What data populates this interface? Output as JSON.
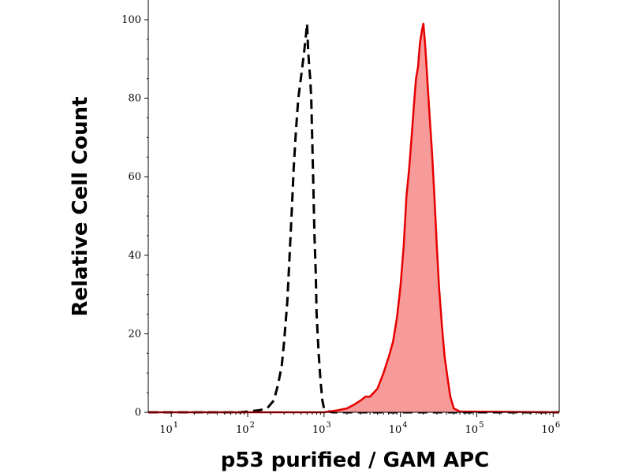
{
  "chart_data": {
    "type": "area",
    "title": "",
    "xlabel": "p53 purified / GAM APC",
    "ylabel": "Relative Cell Count",
    "x_scale": "log",
    "xlim": [
      5,
      1200000
    ],
    "ylim": [
      0,
      100
    ],
    "x_ticks": [
      {
        "base": "10",
        "exp": "1",
        "value": 10
      },
      {
        "base": "10",
        "exp": "2",
        "value": 100
      },
      {
        "base": "10",
        "exp": "3",
        "value": 1000
      },
      {
        "base": "10",
        "exp": "4",
        "value": 10000
      },
      {
        "base": "10",
        "exp": "5",
        "value": 100000
      },
      {
        "base": "10",
        "exp": "6",
        "value": 1000000
      }
    ],
    "y_ticks": [
      "0",
      "20",
      "40",
      "60",
      "80",
      "100"
    ],
    "grid": false,
    "legend": "none",
    "series": [
      {
        "style": "dashed",
        "color": "#000000",
        "fill": "none",
        "x": [
          5,
          80,
          140,
          180,
          220,
          250,
          280,
          300,
          330,
          350,
          380,
          400,
          430,
          460,
          490,
          520,
          550,
          580,
          600,
          620,
          640,
          660,
          680,
          700,
          720,
          750,
          780,
          800,
          850,
          900,
          950,
          1000,
          1050,
          1150,
          1300,
          2000,
          1200000
        ],
        "y": [
          0,
          0,
          0.5,
          1,
          3,
          7,
          12,
          18,
          28,
          38,
          52,
          62,
          72,
          80,
          84,
          88,
          92,
          96,
          99,
          92,
          88,
          85,
          80,
          70,
          60,
          45,
          35,
          25,
          15,
          8,
          3,
          1,
          0.5,
          0.2,
          0,
          0,
          0
        ]
      },
      {
        "style": "solid",
        "color": "#e60000",
        "fill": "#f79a9a",
        "x": [
          5,
          1000,
          1500,
          2000,
          2500,
          3000,
          3500,
          4000,
          5000,
          6000,
          7000,
          8000,
          9000,
          10000,
          11000,
          12000,
          13000,
          14000,
          15000,
          16000,
          17000,
          18000,
          19000,
          20000,
          21000,
          22000,
          24000,
          26000,
          28000,
          30000,
          32000,
          35000,
          38000,
          42000,
          45000,
          50000,
          60000,
          1200000
        ],
        "y": [
          0,
          0,
          0.5,
          1,
          2,
          3,
          4,
          4,
          6,
          10,
          14,
          18,
          24,
          32,
          42,
          55,
          62,
          70,
          78,
          85,
          88,
          94,
          97,
          99,
          94,
          88,
          76,
          66,
          54,
          42,
          32,
          22,
          14,
          8,
          4,
          1,
          0.2,
          0
        ]
      }
    ]
  }
}
